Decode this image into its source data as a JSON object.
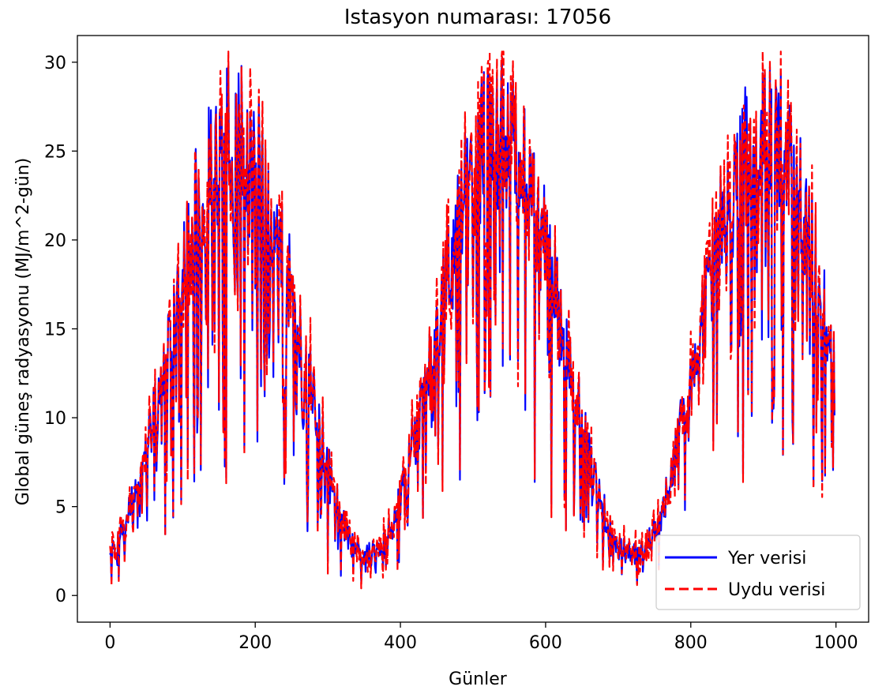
{
  "chart_data": {
    "type": "line",
    "title": "Istasyon numarası: 17056",
    "xlabel": "Günler",
    "ylabel": "Global güneş radyasyonu (MJ/m^2-gün)",
    "xlim": [
      -45,
      1045
    ],
    "ylim": [
      -1.5,
      31.5
    ],
    "xticks": [
      0,
      200,
      400,
      600,
      800,
      1000
    ],
    "yticks": [
      0,
      5,
      10,
      15,
      20,
      25,
      30
    ],
    "grid": false,
    "legend": {
      "placement": "bottom-right"
    },
    "x_range": [
      0,
      998
    ],
    "series_generation": "seasonal solar cycle (~365-day period) with cloudy-day dips",
    "series": [
      {
        "name": "Yer verisi",
        "color": "#0000ff",
        "style": "solid"
      },
      {
        "name": "Uydu verisi",
        "color": "#ff0000",
        "style": "dashed"
      }
    ]
  }
}
